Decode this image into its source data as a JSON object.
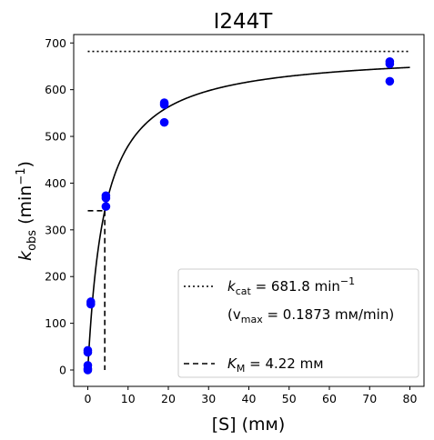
{
  "chart_data": {
    "type": "scatter",
    "title": "I244T",
    "xlabel": "[S] (mм)",
    "ylabel_base": "k",
    "ylabel_sub": "obs",
    "ylabel_unit_open": " (min",
    "ylabel_unit_sup": "−1",
    "ylabel_unit_close": ")",
    "xlim": [
      -3.5,
      83.5
    ],
    "ylim": [
      -35,
      718
    ],
    "x_ticks": [
      0,
      10,
      20,
      30,
      40,
      50,
      60,
      70,
      80
    ],
    "y_ticks": [
      0,
      100,
      200,
      300,
      400,
      500,
      600,
      700
    ],
    "grid": false,
    "legend_position": "lower-right",
    "points": {
      "color": "#0000ff",
      "x": [
        0,
        0,
        0,
        0,
        0,
        0.75,
        0.75,
        4.5,
        4.5,
        4.5,
        19,
        19,
        19,
        75,
        75,
        75
      ],
      "y": [
        0,
        3,
        10,
        38,
        42,
        141,
        146,
        350,
        368,
        373,
        530,
        568,
        572,
        618,
        655,
        660
      ]
    },
    "kcat": 681.8,
    "km": 4.22,
    "fit_curve": {
      "type": "michaelis-menten",
      "x_range": [
        0,
        80
      ],
      "color": "#000000"
    },
    "kcat_line": {
      "x_range": [
        0,
        80
      ],
      "style": "dotted"
    },
    "km_line": {
      "x_range": [
        0,
        4.22
      ],
      "half_vmax": 340.9,
      "style": "dashed"
    },
    "legend": {
      "kcat_prefix": "k",
      "kcat_sub": "cat",
      "kcat_value": " = 681.8 min",
      "kcat_sup": "−1",
      "vmax_open": "(v",
      "vmax_sub": "max",
      "vmax_value": " = 0.1873 mм/min)",
      "km_prefix": "K",
      "km_sub": "M",
      "km_value": " = 4.22 mм"
    }
  }
}
